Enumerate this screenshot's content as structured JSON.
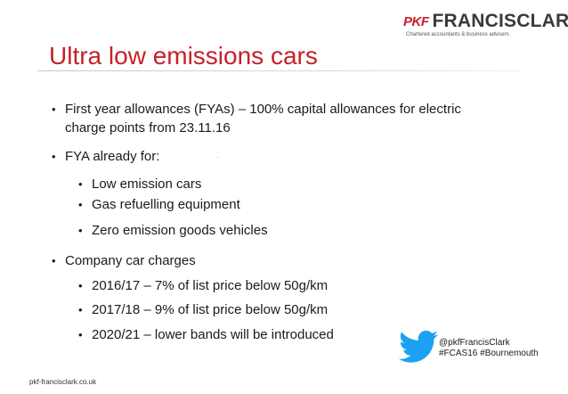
{
  "logo": {
    "prefix": "PKF",
    "name": "FRANCISCLARK",
    "tagline": "Chartered accountants & business advisers"
  },
  "slide": {
    "title": "Ultra low emissions cars",
    "bullets": [
      {
        "text": "First year allowances (FYAs) – 100% capital allowances for electric"
      },
      {
        "text": "charge points from 23.11.16"
      },
      {
        "text": "FYA already for:"
      },
      {
        "text": "Low emission cars"
      },
      {
        "text": "Gas refuelling equipment"
      },
      {
        "text": "Zero emission goods vehicles"
      },
      {
        "text": "Company car charges"
      },
      {
        "text": "2016/17 – 7% of list price below 50g/km"
      },
      {
        "text": "2017/18 – 9% of list price below 50g/km"
      },
      {
        "text": "2020/21 – lower bands will be introduced"
      }
    ],
    "bullet_symbol": "•",
    "stray_mark": "."
  },
  "social": {
    "handle": "@pkfFrancisClark",
    "hashtags": "#FCAS16 #Bournemouth",
    "icon": "twitter-bird-icon",
    "icon_color": "#1da1f2"
  },
  "footer": {
    "url": "pkf-francisclark.co.uk"
  },
  "colors": {
    "accent": "#c8202a",
    "text": "#1a1a1a"
  }
}
